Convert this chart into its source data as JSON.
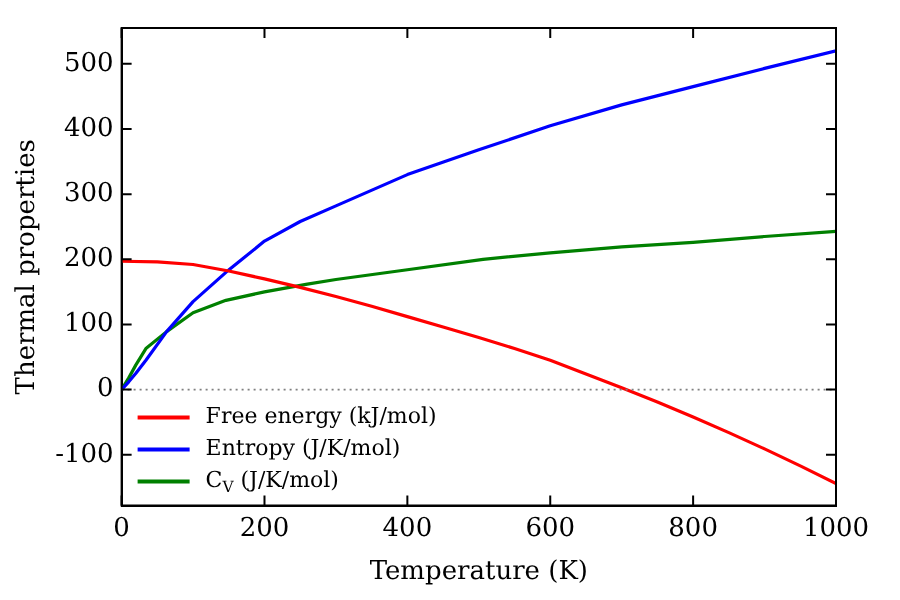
{
  "chart_data": {
    "type": "line",
    "xlabel": "Temperature (K)",
    "ylabel": "Thermal properties",
    "xlim": [
      0,
      1000
    ],
    "xticks": [
      0,
      200,
      400,
      600,
      800,
      1000
    ],
    "ylim": [
      -178,
      555
    ],
    "yticks": [
      -100,
      0,
      100,
      200,
      300,
      400,
      500
    ],
    "grid": false,
    "legend": "bottom left",
    "marker": "none",
    "line_style": "solid",
    "ref_lines": [
      {
        "axis": "y",
        "value": 0,
        "color": "#808080",
        "line_style": "dotted"
      }
    ],
    "series": [
      {
        "name": "Free energy (kJ/mol)",
        "color": "#ff0000",
        "x": [
          0,
          50,
          100,
          150,
          200,
          250,
          300,
          350,
          400,
          450,
          500,
          550,
          600,
          650,
          700,
          750,
          800,
          850,
          900,
          950,
          1000
        ],
        "values": [
          197,
          196,
          192,
          182,
          170,
          157,
          143,
          128,
          112,
          96,
          80,
          63,
          45,
          24,
          3,
          -19,
          -42,
          -66,
          -91,
          -117,
          -144
        ]
      },
      {
        "name": "Entropy (J/K/mol)",
        "color": "#0000ff",
        "x": [
          0,
          10,
          20,
          34,
          63,
          100,
          146,
          200,
          250,
          300,
          400,
          500,
          600,
          700,
          800,
          900,
          1000
        ],
        "values": [
          0,
          12,
          25,
          45,
          89,
          135,
          180,
          228,
          258,
          282,
          330,
          368,
          405,
          437,
          465,
          493,
          520
        ]
      },
      {
        "name": "C$_{V}$ (J/K/mol)",
        "color": "#008000",
        "x": [
          0,
          10,
          20,
          34,
          63,
          100,
          146,
          200,
          260,
          300,
          400,
          506,
          600,
          700,
          800,
          900,
          1000
        ],
        "values": [
          0,
          18,
          38,
          63,
          89,
          118,
          137,
          150,
          162,
          169,
          184,
          200,
          210,
          219,
          226,
          235,
          243
        ]
      }
    ]
  }
}
